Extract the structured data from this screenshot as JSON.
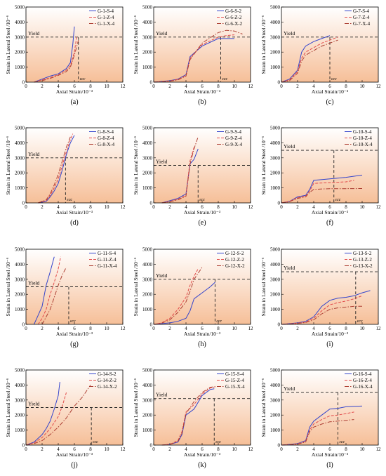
{
  "colors": {
    "S": "#3344cc",
    "Z": "#e24a4a",
    "X": "#ad3f33",
    "bg_top": "#ffffff",
    "bg_bottom": "#f6bf98",
    "ref_line": "#222222"
  },
  "shared": {
    "ylabel": "Strain in Lateral Steel /10⁻⁶",
    "xlabel": "Axial Strain/10⁻³",
    "yield_label": "Yield",
    "marker_label": "εcc",
    "xticks": [
      "0",
      "2",
      "4",
      "6",
      "8",
      "10",
      "12"
    ],
    "yticks": [
      "0",
      "1000",
      "2000",
      "3000",
      "4000",
      "5000"
    ]
  },
  "chart_data": [
    {
      "type": "line",
      "panel": "(a)",
      "xlim": [
        0,
        12
      ],
      "ylim": [
        0,
        5000
      ],
      "yield": 3000,
      "ecc": 6.5,
      "series": [
        {
          "name": "G-1-S-4",
          "style": "S",
          "x": [
            1,
            2,
            3,
            4,
            5,
            5.5,
            5.8,
            6.0
          ],
          "y": [
            0,
            200,
            400,
            550,
            900,
            1300,
            2500,
            3700
          ]
        },
        {
          "name": "G-1-Z-4",
          "style": "Z",
          "x": [
            1,
            2,
            3,
            4,
            5,
            5.5,
            6.0,
            6.3
          ],
          "y": [
            0,
            150,
            300,
            500,
            800,
            1100,
            2000,
            3100
          ]
        },
        {
          "name": "G-1-X-4",
          "style": "X",
          "x": [
            1,
            2,
            3,
            4,
            5,
            5.5,
            6.0,
            6.5
          ],
          "y": [
            0,
            100,
            250,
            450,
            700,
            1000,
            1800,
            2800
          ]
        }
      ]
    },
    {
      "type": "line",
      "panel": "(b)",
      "xlim": [
        0,
        12
      ],
      "ylim": [
        0,
        5000
      ],
      "yield": 3000,
      "ecc": 8.3,
      "series": [
        {
          "name": "G-6-S-2",
          "style": "S",
          "x": [
            0,
            2,
            3,
            4,
            4.5,
            6,
            8,
            9,
            10
          ],
          "y": [
            0,
            100,
            200,
            500,
            1700,
            2400,
            2900,
            2900,
            2900
          ]
        },
        {
          "name": "G-6-Z-2",
          "style": "Z",
          "x": [
            0,
            2,
            3,
            4,
            4.5,
            6,
            8,
            9,
            10
          ],
          "y": [
            0,
            80,
            180,
            450,
            1600,
            2500,
            3000,
            3100,
            3150
          ]
        },
        {
          "name": "G-6-X-2",
          "style": "X",
          "x": [
            0,
            2,
            3,
            4,
            4.5,
            6,
            8,
            9,
            10,
            11
          ],
          "y": [
            0,
            60,
            150,
            400,
            1500,
            2600,
            3300,
            3450,
            3400,
            3200
          ]
        }
      ]
    },
    {
      "type": "line",
      "panel": "(c)",
      "xlim": [
        0,
        12
      ],
      "ylim": [
        0,
        5000
      ],
      "yield": 3000,
      "ecc": 6.0,
      "series": [
        {
          "name": "G-7-S-4",
          "style": "S",
          "x": [
            0,
            1,
            2,
            2.5,
            3,
            4,
            5,
            6
          ],
          "y": [
            0,
            200,
            800,
            2000,
            2400,
            2700,
            2900,
            3100
          ]
        },
        {
          "name": "G-7-Z-4",
          "style": "Z",
          "x": [
            0,
            1,
            2,
            2.5,
            3,
            4,
            5,
            6,
            7
          ],
          "y": [
            0,
            150,
            700,
            1600,
            2000,
            2300,
            2600,
            2800,
            3000
          ]
        },
        {
          "name": "G-7-X-4",
          "style": "X",
          "x": [
            0,
            1,
            2,
            2.5,
            3,
            4,
            5,
            6,
            7
          ],
          "y": [
            0,
            100,
            600,
            1400,
            1800,
            2100,
            2400,
            2600,
            2800
          ]
        }
      ]
    },
    {
      "type": "line",
      "panel": "(d)",
      "xlim": [
        0,
        12
      ],
      "ylim": [
        0,
        5000
      ],
      "yield": 3000,
      "ecc": 4.9,
      "series": [
        {
          "name": "G-8-S-4",
          "style": "S",
          "x": [
            1.5,
            2.5,
            3,
            3.5,
            4,
            4.5,
            5,
            5.5,
            6
          ],
          "y": [
            0,
            100,
            400,
            800,
            1300,
            2200,
            3200,
            4000,
            4500
          ]
        },
        {
          "name": "G-8-Z-4",
          "style": "Z",
          "x": [
            1.5,
            2.5,
            3,
            3.5,
            4,
            4.5,
            5,
            5.5,
            5.8
          ],
          "y": [
            0,
            150,
            500,
            1000,
            1600,
            2500,
            3400,
            4200,
            4600
          ]
        },
        {
          "name": "G-8-X-4",
          "style": "X",
          "x": [
            1.5,
            2.5,
            3,
            3.5,
            4,
            4.5,
            5,
            5.5
          ],
          "y": [
            0,
            200,
            600,
            1200,
            1900,
            2800,
            3700,
            4400
          ]
        }
      ]
    },
    {
      "type": "line",
      "panel": "(e)",
      "xlim": [
        0,
        12
      ],
      "ylim": [
        0,
        5000
      ],
      "yield": 2500,
      "ecc": 5.5,
      "series": [
        {
          "name": "G-9-S-4",
          "style": "S",
          "x": [
            1,
            2,
            3,
            4,
            4.5,
            5,
            5.5
          ],
          "y": [
            0,
            150,
            300,
            600,
            2600,
            2900,
            3600
          ]
        },
        {
          "name": "G-9-Z-4",
          "style": "Z",
          "x": [
            1,
            2,
            3,
            4,
            4.5,
            5
          ],
          "y": [
            0,
            100,
            250,
            500,
            2800,
            3700
          ]
        },
        {
          "name": "G-9-X-4",
          "style": "X",
          "x": [
            1,
            2,
            3,
            4,
            4.5,
            5.0,
            5.5
          ],
          "y": [
            0,
            80,
            200,
            450,
            2600,
            3600,
            4400
          ]
        }
      ]
    },
    {
      "type": "line",
      "panel": "(f)",
      "xlim": [
        0,
        12
      ],
      "ylim": [
        0,
        5000
      ],
      "yield": 3500,
      "ecc": 6.5,
      "series": [
        {
          "name": "G-10-S-4",
          "style": "S",
          "x": [
            0,
            1,
            2,
            3,
            3.5,
            4,
            6,
            8,
            10
          ],
          "y": [
            0,
            100,
            400,
            500,
            900,
            1500,
            1600,
            1700,
            1850
          ]
        },
        {
          "name": "G-10-Z-4",
          "style": "Z",
          "x": [
            0,
            1,
            2,
            3,
            3.5,
            4,
            6,
            8,
            9
          ],
          "y": [
            0,
            100,
            350,
            450,
            800,
            1300,
            1350,
            1400,
            1500
          ]
        },
        {
          "name": "G-10-X-4",
          "style": "X",
          "x": [
            0,
            1,
            2,
            3,
            3.5,
            4,
            6,
            8,
            10
          ],
          "y": [
            0,
            80,
            300,
            400,
            700,
            900,
            950,
            950,
            960
          ]
        }
      ]
    },
    {
      "type": "line",
      "panel": "(g)",
      "xlim": [
        0,
        12
      ],
      "ylim": [
        0,
        5000
      ],
      "yield": 2500,
      "ecc": 5.3,
      "series": [
        {
          "name": "G-11-S-4",
          "style": "S",
          "x": [
            1,
            1.5,
            2,
            2.5,
            3,
            3.5
          ],
          "y": [
            0,
            600,
            1200,
            2600,
            3500,
            4500
          ]
        },
        {
          "name": "G-11-Z-4",
          "style": "Z",
          "x": [
            1.5,
            2,
            2.5,
            3,
            3.5,
            4,
            4.3
          ],
          "y": [
            0,
            400,
            1000,
            2000,
            2800,
            3700,
            4500
          ]
        },
        {
          "name": "G-11-X-4",
          "style": "X",
          "x": [
            2,
            2.5,
            3,
            3.5,
            4,
            4.5,
            5
          ],
          "y": [
            0,
            500,
            1000,
            1800,
            2600,
            3300,
            3800
          ]
        }
      ]
    },
    {
      "type": "line",
      "panel": "(h)",
      "xlim": [
        0,
        12
      ],
      "ylim": [
        0,
        5000
      ],
      "yield": 3000,
      "ecc": 7.6,
      "series": [
        {
          "name": "G-12-S-2",
          "style": "S",
          "x": [
            0,
            2,
            3,
            4,
            4.5,
            5,
            6,
            7,
            7.6
          ],
          "y": [
            0,
            100,
            200,
            400,
            900,
            1700,
            2100,
            2500,
            2800
          ]
        },
        {
          "name": "G-12-Z-2",
          "style": "Z",
          "x": [
            0,
            1,
            2,
            3,
            4,
            4.5,
            5,
            5.5
          ],
          "y": [
            0,
            100,
            400,
            1000,
            1800,
            2600,
            3200,
            3700
          ]
        },
        {
          "name": "G-12-X-2",
          "style": "X",
          "x": [
            0,
            1,
            2,
            3,
            4,
            4.5,
            5,
            6
          ],
          "y": [
            0,
            80,
            300,
            800,
            1500,
            2200,
            3000,
            3800
          ]
        }
      ]
    },
    {
      "type": "line",
      "panel": "(i)",
      "xlim": [
        0,
        12
      ],
      "ylim": [
        0,
        5000
      ],
      "yield": 3500,
      "ecc": 9.2,
      "series": [
        {
          "name": "G-13-S-2",
          "style": "S",
          "x": [
            0,
            2,
            3,
            4,
            5,
            6,
            7,
            8,
            9,
            10,
            11
          ],
          "y": [
            0,
            100,
            200,
            500,
            1200,
            1600,
            1750,
            1800,
            1900,
            2100,
            2250
          ]
        },
        {
          "name": "G-13-Z-2",
          "style": "Z",
          "x": [
            0,
            2,
            3,
            4,
            5,
            6,
            7,
            8,
            9,
            10
          ],
          "y": [
            0,
            80,
            150,
            400,
            900,
            1300,
            1450,
            1550,
            1700,
            1900
          ]
        },
        {
          "name": "G-13-X-2",
          "style": "X",
          "x": [
            0,
            2,
            3,
            4,
            5,
            6,
            7,
            8,
            9,
            10
          ],
          "y": [
            0,
            60,
            120,
            300,
            700,
            1000,
            1100,
            1150,
            1200,
            1200
          ]
        }
      ]
    },
    {
      "type": "line",
      "panel": "(j)",
      "xlim": [
        0,
        12
      ],
      "ylim": [
        0,
        5000
      ],
      "yield": 2500,
      "ecc": 8.1,
      "series": [
        {
          "name": "G-14-S-2",
          "style": "S",
          "x": [
            0,
            1,
            2,
            2.5,
            3,
            3.5,
            4,
            4.2
          ],
          "y": [
            0,
            200,
            700,
            1100,
            1600,
            2400,
            3300,
            4200
          ]
        },
        {
          "name": "G-14-Z-2",
          "style": "Z",
          "x": [
            0,
            1,
            2,
            3,
            4,
            4.5,
            5
          ],
          "y": [
            0,
            150,
            500,
            1100,
            1900,
            2600,
            3500
          ]
        },
        {
          "name": "G-14-X-2",
          "style": "X",
          "x": [
            0,
            1,
            2,
            3,
            4,
            5,
            6,
            7,
            8
          ],
          "y": [
            0,
            100,
            300,
            700,
            1200,
            1800,
            2600,
            3200,
            4000
          ]
        }
      ]
    },
    {
      "type": "line",
      "panel": "(k)",
      "xlim": [
        0,
        12
      ],
      "ylim": [
        0,
        5000
      ],
      "yield": 3100,
      "ecc": 7.5,
      "series": [
        {
          "name": "G-15-S-4",
          "style": "S",
          "x": [
            1,
            2,
            3,
            3.5,
            4,
            5,
            6,
            7,
            7.5
          ],
          "y": [
            0,
            50,
            200,
            700,
            2000,
            2400,
            3300,
            3700,
            3750
          ]
        },
        {
          "name": "G-15-Z-4",
          "style": "Z",
          "x": [
            1,
            2,
            3,
            3.5,
            4,
            5,
            6,
            7,
            7.5
          ],
          "y": [
            0,
            50,
            300,
            900,
            2200,
            2700,
            3400,
            3800,
            3850
          ]
        },
        {
          "name": "G-15-X-4",
          "style": "X",
          "x": [
            1,
            2,
            3,
            3.5,
            4,
            5,
            6,
            7,
            7.8
          ],
          "y": [
            0,
            40,
            250,
            800,
            2100,
            2900,
            3500,
            3850,
            3900
          ]
        }
      ]
    },
    {
      "type": "line",
      "panel": "(l)",
      "xlim": [
        0,
        12
      ],
      "ylim": [
        0,
        5000
      ],
      "yield": 3500,
      "ecc": 7.0,
      "series": [
        {
          "name": "G-16-S-4",
          "style": "S",
          "x": [
            0,
            2,
            3,
            3.5,
            4,
            5,
            6,
            7,
            8,
            9,
            10
          ],
          "y": [
            0,
            100,
            300,
            1200,
            1600,
            2000,
            2400,
            2450,
            2550,
            2580,
            2600
          ]
        },
        {
          "name": "G-16-Z-4",
          "style": "Z",
          "x": [
            0,
            2,
            3,
            3.5,
            4,
            5,
            6,
            7,
            8,
            9
          ],
          "y": [
            0,
            80,
            250,
            1000,
            1400,
            1700,
            1950,
            2000,
            2100,
            2200
          ]
        },
        {
          "name": "G-16-X-4",
          "style": "X",
          "x": [
            0,
            2,
            3,
            3.5,
            4,
            5,
            6,
            7,
            8,
            9
          ],
          "y": [
            0,
            60,
            200,
            900,
            1200,
            1400,
            1550,
            1600,
            1650,
            1700
          ]
        }
      ]
    }
  ]
}
